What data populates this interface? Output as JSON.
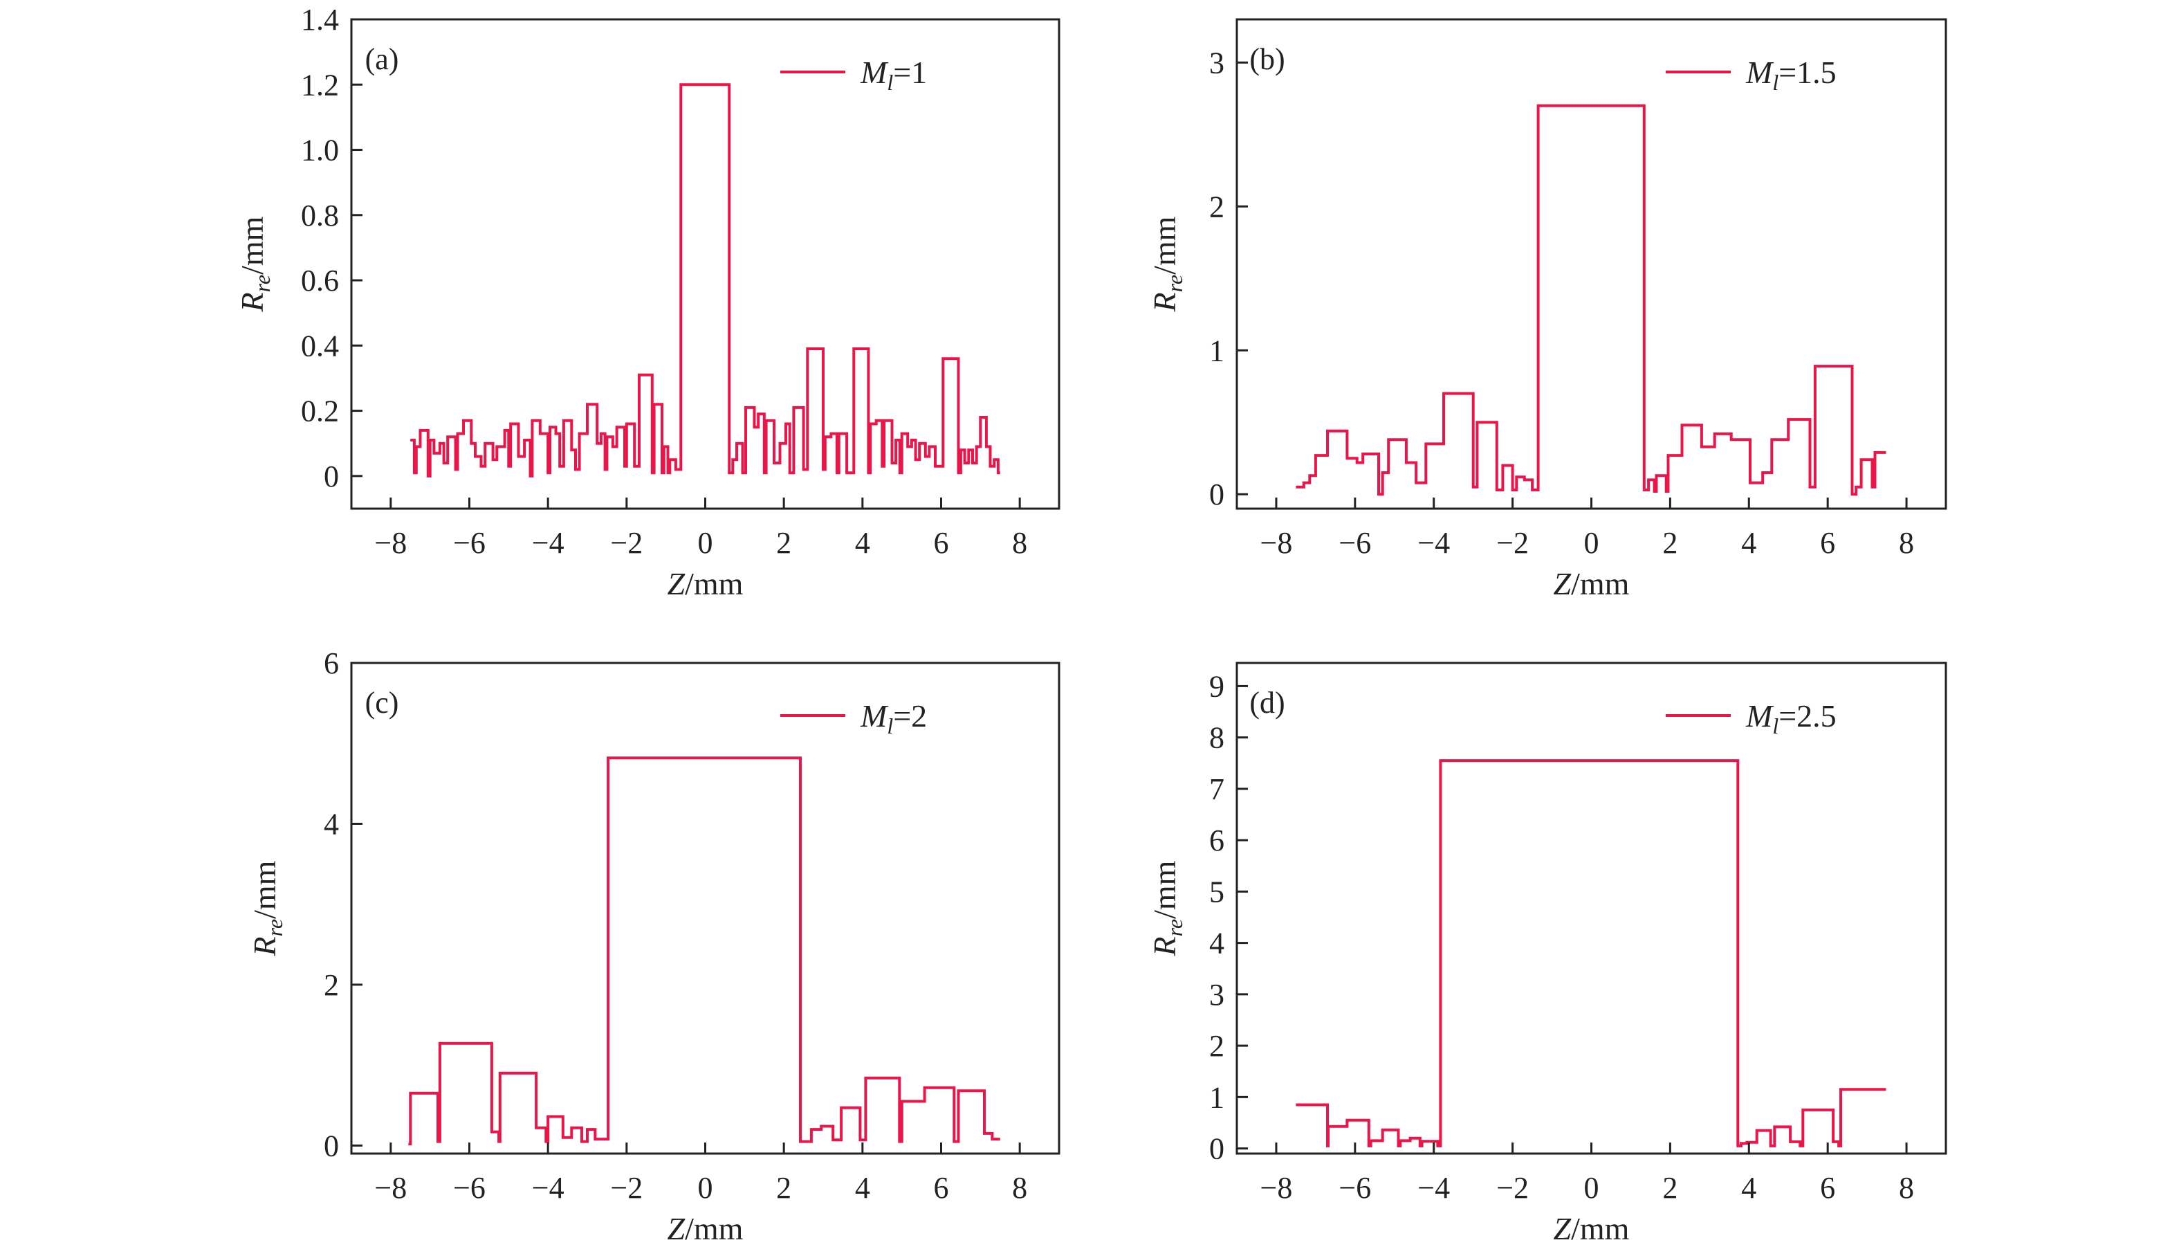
{
  "chart_data": [
    {
      "type": "line",
      "panel_label": "(a)",
      "legend": {
        "symbol": "M",
        "subscript": "l",
        "value": "=1"
      },
      "xlabel": {
        "symbol": "Z",
        "unit": "/mm"
      },
      "ylabel": {
        "symbol": "R",
        "subscript": "re",
        "unit": "/mm"
      },
      "xlim": [
        -9,
        9
      ],
      "ylim": [
        -0.1,
        1.4
      ],
      "xticks": [
        {
          "v": -8,
          "t": "−8"
        },
        {
          "v": -6,
          "t": "−6"
        },
        {
          "v": -4,
          "t": "−4"
        },
        {
          "v": -2,
          "t": "−2"
        },
        {
          "v": 0,
          "t": "0"
        },
        {
          "v": 2,
          "t": "2"
        },
        {
          "v": 4,
          "t": "4"
        },
        {
          "v": 6,
          "t": "6"
        },
        {
          "v": 8,
          "t": "8"
        }
      ],
      "yticks": [
        {
          "v": 0,
          "t": "0"
        },
        {
          "v": 0.2,
          "t": "0.2"
        },
        {
          "v": 0.4,
          "t": "0.4"
        },
        {
          "v": 0.6,
          "t": "0.6"
        },
        {
          "v": 0.8,
          "t": "0.8"
        },
        {
          "v": 1.0,
          "t": "1.0"
        },
        {
          "v": 1.2,
          "t": "1.2"
        },
        {
          "v": 1.4,
          "t": "1.4"
        }
      ],
      "color": "#e8174a",
      "step_end_x": 7.5,
      "steps": [
        [
          -7.5,
          0.11
        ],
        [
          -7.4,
          0.01
        ],
        [
          -7.35,
          0.09
        ],
        [
          -7.25,
          0.14
        ],
        [
          -7.05,
          0.0
        ],
        [
          -7.0,
          0.11
        ],
        [
          -6.9,
          0.07
        ],
        [
          -6.75,
          0.1
        ],
        [
          -6.65,
          0.04
        ],
        [
          -6.55,
          0.12
        ],
        [
          -6.35,
          0.02
        ],
        [
          -6.3,
          0.13
        ],
        [
          -6.15,
          0.17
        ],
        [
          -5.95,
          0.1
        ],
        [
          -5.85,
          0.06
        ],
        [
          -5.7,
          0.03
        ],
        [
          -5.6,
          0.1
        ],
        [
          -5.4,
          0.05
        ],
        [
          -5.3,
          0.09
        ],
        [
          -5.1,
          0.14
        ],
        [
          -5.0,
          0.03
        ],
        [
          -4.95,
          0.16
        ],
        [
          -4.75,
          0.06
        ],
        [
          -4.6,
          0.11
        ],
        [
          -4.45,
          0.0
        ],
        [
          -4.4,
          0.17
        ],
        [
          -4.2,
          0.13
        ],
        [
          -4.0,
          0.01
        ],
        [
          -3.95,
          0.15
        ],
        [
          -3.8,
          0.13
        ],
        [
          -3.7,
          0.03
        ],
        [
          -3.6,
          0.17
        ],
        [
          -3.4,
          0.08
        ],
        [
          -3.3,
          0.02
        ],
        [
          -3.2,
          0.13
        ],
        [
          -3.0,
          0.22
        ],
        [
          -2.75,
          0.1
        ],
        [
          -2.65,
          0.13
        ],
        [
          -2.55,
          0.02
        ],
        [
          -2.5,
          0.12
        ],
        [
          -2.35,
          0.09
        ],
        [
          -2.25,
          0.15
        ],
        [
          -2.05,
          0.03
        ],
        [
          -2.0,
          0.16
        ],
        [
          -1.8,
          0.03
        ],
        [
          -1.68,
          0.31
        ],
        [
          -1.35,
          0.01
        ],
        [
          -1.3,
          0.22
        ],
        [
          -1.1,
          0.01
        ],
        [
          -1.05,
          0.09
        ],
        [
          -0.95,
          0.01
        ],
        [
          -0.9,
          0.05
        ],
        [
          -0.75,
          0.02
        ],
        [
          -0.62,
          1.2
        ],
        [
          0.61,
          0.01
        ],
        [
          0.7,
          0.05
        ],
        [
          0.8,
          0.1
        ],
        [
          0.95,
          0.01
        ],
        [
          1.03,
          0.21
        ],
        [
          1.25,
          0.15
        ],
        [
          1.35,
          0.19
        ],
        [
          1.5,
          0.01
        ],
        [
          1.55,
          0.17
        ],
        [
          1.75,
          0.04
        ],
        [
          1.9,
          0.1
        ],
        [
          2.05,
          0.16
        ],
        [
          2.15,
          0.01
        ],
        [
          2.25,
          0.21
        ],
        [
          2.5,
          0.02
        ],
        [
          2.6,
          0.39
        ],
        [
          3.0,
          0.02
        ],
        [
          3.05,
          0.12
        ],
        [
          3.2,
          0.13
        ],
        [
          3.35,
          0.01
        ],
        [
          3.4,
          0.13
        ],
        [
          3.6,
          0.01
        ],
        [
          3.78,
          0.39
        ],
        [
          4.15,
          0.01
        ],
        [
          4.2,
          0.16
        ],
        [
          4.35,
          0.17
        ],
        [
          4.5,
          0.03
        ],
        [
          4.55,
          0.17
        ],
        [
          4.75,
          0.04
        ],
        [
          4.85,
          0.11
        ],
        [
          4.95,
          0.01
        ],
        [
          5.0,
          0.13
        ],
        [
          5.15,
          0.09
        ],
        [
          5.25,
          0.11
        ],
        [
          5.35,
          0.05
        ],
        [
          5.45,
          0.1
        ],
        [
          5.6,
          0.06
        ],
        [
          5.7,
          0.09
        ],
        [
          5.85,
          0.03
        ],
        [
          6.05,
          0.36
        ],
        [
          6.44,
          0.01
        ],
        [
          6.5,
          0.08
        ],
        [
          6.6,
          0.04
        ],
        [
          6.7,
          0.08
        ],
        [
          6.8,
          0.04
        ],
        [
          6.9,
          0.09
        ],
        [
          7.0,
          0.18
        ],
        [
          7.15,
          0.09
        ],
        [
          7.25,
          0.03
        ],
        [
          7.35,
          0.05
        ],
        [
          7.45,
          0.01
        ]
      ]
    },
    {
      "type": "line",
      "panel_label": "(b)",
      "legend": {
        "symbol": "M",
        "subscript": "l",
        "value": "=1.5"
      },
      "xlabel": {
        "symbol": "Z",
        "unit": "/mm"
      },
      "ylabel": {
        "symbol": "R",
        "subscript": "re",
        "unit": "/mm"
      },
      "xlim": [
        -9,
        9
      ],
      "ylim": [
        -0.1,
        3.3
      ],
      "xticks": [
        {
          "v": -8,
          "t": "−8"
        },
        {
          "v": -6,
          "t": "−6"
        },
        {
          "v": -4,
          "t": "−4"
        },
        {
          "v": -2,
          "t": "−2"
        },
        {
          "v": 0,
          "t": "0"
        },
        {
          "v": 2,
          "t": "2"
        },
        {
          "v": 4,
          "t": "4"
        },
        {
          "v": 6,
          "t": "6"
        },
        {
          "v": 8,
          "t": "8"
        }
      ],
      "yticks": [
        {
          "v": 0,
          "t": "0"
        },
        {
          "v": 1,
          "t": "1"
        },
        {
          "v": 2,
          "t": "2"
        },
        {
          "v": 3,
          "t": "3"
        }
      ],
      "color": "#e8174a",
      "step_end_x": 7.48,
      "steps": [
        [
          -7.5,
          0.05
        ],
        [
          -7.3,
          0.08
        ],
        [
          -7.15,
          0.13
        ],
        [
          -7.0,
          0.27
        ],
        [
          -6.7,
          0.44
        ],
        [
          -6.2,
          0.25
        ],
        [
          -5.95,
          0.22
        ],
        [
          -5.8,
          0.28
        ],
        [
          -5.4,
          0.0
        ],
        [
          -5.3,
          0.15
        ],
        [
          -5.15,
          0.38
        ],
        [
          -4.7,
          0.22
        ],
        [
          -4.45,
          0.08
        ],
        [
          -4.2,
          0.35
        ],
        [
          -3.75,
          0.7
        ],
        [
          -3.0,
          0.05
        ],
        [
          -2.9,
          0.5
        ],
        [
          -2.4,
          0.03
        ],
        [
          -2.25,
          0.2
        ],
        [
          -2.0,
          0.03
        ],
        [
          -1.9,
          0.12
        ],
        [
          -1.7,
          0.1
        ],
        [
          -1.5,
          0.03
        ],
        [
          -1.35,
          2.7
        ],
        [
          1.34,
          0.03
        ],
        [
          1.45,
          0.1
        ],
        [
          1.6,
          0.02
        ],
        [
          1.65,
          0.13
        ],
        [
          1.9,
          0.02
        ],
        [
          1.95,
          0.27
        ],
        [
          2.3,
          0.48
        ],
        [
          2.8,
          0.33
        ],
        [
          3.13,
          0.42
        ],
        [
          3.55,
          0.38
        ],
        [
          4.03,
          0.08
        ],
        [
          4.35,
          0.15
        ],
        [
          4.58,
          0.38
        ],
        [
          5.0,
          0.52
        ],
        [
          5.55,
          0.05
        ],
        [
          5.68,
          0.89
        ],
        [
          6.62,
          0.0
        ],
        [
          6.72,
          0.05
        ],
        [
          6.85,
          0.24
        ],
        [
          7.13,
          0.05
        ],
        [
          7.2,
          0.29
        ]
      ]
    },
    {
      "type": "line",
      "panel_label": "(c)",
      "legend": {
        "symbol": "M",
        "subscript": "l",
        "value": "=2"
      },
      "xlabel": {
        "symbol": "Z",
        "unit": "/mm"
      },
      "ylabel": {
        "symbol": "R",
        "subscript": "re",
        "unit": "/mm"
      },
      "xlim": [
        -9,
        9
      ],
      "ylim": [
        -0.1,
        6
      ],
      "xticks": [
        {
          "v": -8,
          "t": "−8"
        },
        {
          "v": -6,
          "t": "−6"
        },
        {
          "v": -4,
          "t": "−4"
        },
        {
          "v": -2,
          "t": "−2"
        },
        {
          "v": 0,
          "t": "0"
        },
        {
          "v": 2,
          "t": "2"
        },
        {
          "v": 4,
          "t": "4"
        },
        {
          "v": 6,
          "t": "6"
        },
        {
          "v": 8,
          "t": "8"
        }
      ],
      "yticks": [
        {
          "v": 0,
          "t": "0"
        },
        {
          "v": 2,
          "t": "2"
        },
        {
          "v": 4,
          "t": "4"
        },
        {
          "v": 6,
          "t": "6"
        }
      ],
      "color": "#e8174a",
      "step_end_x": 7.5,
      "steps": [
        [
          -7.55,
          0.02
        ],
        [
          -7.5,
          0.65
        ],
        [
          -6.8,
          0.05
        ],
        [
          -6.75,
          1.27
        ],
        [
          -5.43,
          0.17
        ],
        [
          -5.25,
          0.05
        ],
        [
          -5.22,
          0.9
        ],
        [
          -4.3,
          0.22
        ],
        [
          -4.05,
          0.05
        ],
        [
          -4.0,
          0.36
        ],
        [
          -3.62,
          0.1
        ],
        [
          -3.4,
          0.22
        ],
        [
          -3.14,
          0.05
        ],
        [
          -3.0,
          0.2
        ],
        [
          -2.8,
          0.08
        ],
        [
          -2.47,
          4.82
        ],
        [
          2.42,
          0.05
        ],
        [
          2.7,
          0.2
        ],
        [
          2.95,
          0.24
        ],
        [
          3.25,
          0.07
        ],
        [
          3.46,
          0.47
        ],
        [
          3.94,
          0.07
        ],
        [
          4.08,
          0.84
        ],
        [
          4.94,
          0.05
        ],
        [
          5.0,
          0.55
        ],
        [
          5.58,
          0.72
        ],
        [
          6.33,
          0.05
        ],
        [
          6.44,
          0.68
        ],
        [
          7.1,
          0.15
        ],
        [
          7.3,
          0.08
        ]
      ]
    },
    {
      "type": "line",
      "panel_label": "(d)",
      "legend": {
        "symbol": "M",
        "subscript": "l",
        "value": "=2.5"
      },
      "xlabel": {
        "symbol": "Z",
        "unit": "/mm"
      },
      "ylabel": {
        "symbol": "R",
        "subscript": "re",
        "unit": "/mm"
      },
      "xlim": [
        -9,
        9
      ],
      "ylim": [
        -0.1,
        9.45
      ],
      "xticks": [
        {
          "v": -8,
          "t": "−8"
        },
        {
          "v": -6,
          "t": "−6"
        },
        {
          "v": -4,
          "t": "−4"
        },
        {
          "v": -2,
          "t": "−2"
        },
        {
          "v": 0,
          "t": "0"
        },
        {
          "v": 2,
          "t": "2"
        },
        {
          "v": 4,
          "t": "4"
        },
        {
          "v": 6,
          "t": "6"
        },
        {
          "v": 8,
          "t": "8"
        }
      ],
      "yticks": [
        {
          "v": 0,
          "t": "0"
        },
        {
          "v": 1,
          "t": "1"
        },
        {
          "v": 2,
          "t": "2"
        },
        {
          "v": 3,
          "t": "3"
        },
        {
          "v": 4,
          "t": "4"
        },
        {
          "v": 5,
          "t": "5"
        },
        {
          "v": 6,
          "t": "6"
        },
        {
          "v": 7,
          "t": "7"
        },
        {
          "v": 8,
          "t": "8"
        },
        {
          "v": 9,
          "t": "9"
        }
      ],
      "color": "#e8174a",
      "step_end_x": 7.48,
      "steps": [
        [
          -7.5,
          0.85
        ],
        [
          -6.7,
          0.05
        ],
        [
          -6.68,
          0.43
        ],
        [
          -6.2,
          0.55
        ],
        [
          -5.65,
          0.05
        ],
        [
          -5.6,
          0.15
        ],
        [
          -5.3,
          0.36
        ],
        [
          -4.9,
          0.05
        ],
        [
          -4.85,
          0.15
        ],
        [
          -4.6,
          0.2
        ],
        [
          -4.35,
          0.05
        ],
        [
          -4.3,
          0.14
        ],
        [
          -3.9,
          0.05
        ],
        [
          -3.83,
          7.55
        ],
        [
          3.72,
          0.05
        ],
        [
          3.8,
          0.1
        ],
        [
          3.95,
          0.12
        ],
        [
          4.2,
          0.35
        ],
        [
          4.55,
          0.05
        ],
        [
          4.65,
          0.42
        ],
        [
          5.05,
          0.13
        ],
        [
          5.3,
          0.05
        ],
        [
          5.37,
          0.75
        ],
        [
          6.14,
          0.13
        ],
        [
          6.28,
          0.05
        ],
        [
          6.33,
          1.15
        ]
      ]
    }
  ]
}
